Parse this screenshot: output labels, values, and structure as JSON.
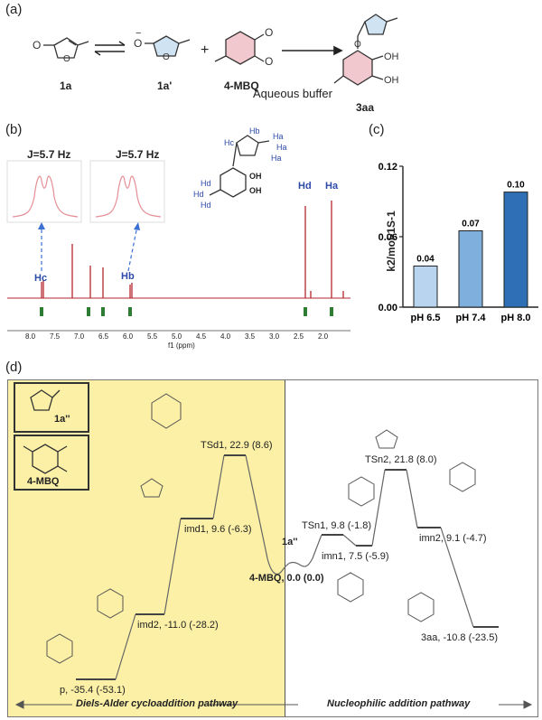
{
  "panels": {
    "a": "(a)",
    "b": "(b)",
    "c": "(c)",
    "d": "(d)"
  },
  "scheme_a": {
    "compounds": [
      "1a",
      "1a'",
      "4-MBQ",
      "3aa"
    ],
    "condition": "Aqueous buffer"
  },
  "nmr": {
    "coupling_left": "J=5.7 Hz",
    "coupling_right": "J=5.7 Hz",
    "peak_labels": [
      "Hc",
      "Hb",
      "Hd",
      "Ha"
    ],
    "structure_labels": [
      "Hc",
      "Hb",
      "Ha",
      "Ha",
      "Ha",
      "Hd",
      "Hd",
      "Hd",
      "OH",
      "OH"
    ],
    "x_ticks": [
      "8.0",
      "7.5",
      "7.0",
      "6.5",
      "6.0",
      "5.5",
      "5.0",
      "4.5",
      "4.0",
      "3.5",
      "3.0",
      "2.5",
      "2.0"
    ],
    "xlabel": "f1 (ppm)"
  },
  "chart_data": {
    "type": "bar",
    "categories": [
      "pH 6.5",
      "pH 7.4",
      "pH 8.0"
    ],
    "values": [
      0.04,
      0.07,
      0.1
    ],
    "value_labels": [
      "0.04",
      "0.07",
      "0.10"
    ],
    "bar_heights": [
      0.035,
      0.065,
      0.098
    ],
    "y_ticks": [
      "0.00",
      "0.06",
      "0.12"
    ],
    "ylim": [
      0,
      0.12
    ],
    "ylabel": "k2/mol-1S-1",
    "colors": [
      "#b9d4ee",
      "#7fb0dd",
      "#2e6fb5"
    ]
  },
  "energy": {
    "states": [
      {
        "name": "TSd1",
        "text": "TSd1, 22.9 (8.6)"
      },
      {
        "name": "imd1",
        "text": "imd1, 9.6 (-6.3)"
      },
      {
        "name": "1a''",
        "text": "1a''"
      },
      {
        "name": "4-MBQ",
        "text": "4-MBQ, 0.0 (0.0)"
      },
      {
        "name": "TSn1",
        "text": "TSn1, 9.8 (-1.8)"
      },
      {
        "name": "imn1",
        "text": "imn1, 7.5 (-5.9)"
      },
      {
        "name": "TSn2",
        "text": "TSn2, 21.8 (8.0)"
      },
      {
        "name": "imn2",
        "text": "imn2, 9.1 (-4.7)"
      },
      {
        "name": "3aa",
        "text": "3aa, -10.8 (-23.5)"
      },
      {
        "name": "imd2",
        "text": "imd2, -11.0 (-28.2)"
      },
      {
        "name": "p",
        "text": "p, -35.4 (-53.1)"
      }
    ],
    "inset_labels": {
      "top": "1a''",
      "bottom": "4-MBQ"
    },
    "left_pathway": "Diels-Alder cycloaddition pathway",
    "right_pathway": "Nucleophilic addition pathway",
    "colors": {
      "left_bg": "#fbf0a6",
      "nmr_trace": "#b3262e",
      "peak_label": "#2d4aa8"
    }
  }
}
